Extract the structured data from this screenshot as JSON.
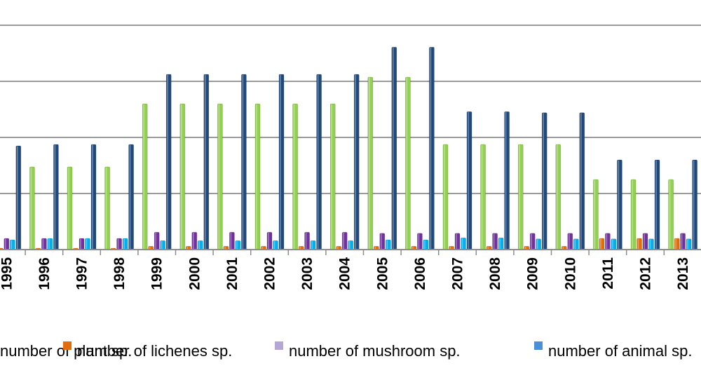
{
  "chart_data": {
    "type": "bar",
    "title": "",
    "xlabel": "",
    "ylabel": "",
    "grid": true,
    "legend_position": "bottom",
    "categories": [
      "1995",
      "1996",
      "1997",
      "1998",
      "1999",
      "2000",
      "2001",
      "2002",
      "2003",
      "2004",
      "2005",
      "2006",
      "2007",
      "2008",
      "2009",
      "2010",
      "2011",
      "2012",
      "2013"
    ],
    "ylim": [
      0,
      8
    ],
    "series": [
      {
        "name": "number of plant sp.",
        "color": "#92d050",
        "values": [
          2.95,
          2.95,
          2.95,
          2.95,
          5.2,
          5.2,
          5.2,
          5.2,
          5.2,
          5.2,
          6.15,
          6.15,
          3.75,
          3.75,
          3.75,
          3.75,
          2.5,
          2.5,
          2.5
        ]
      },
      {
        "name": "number of lichenes sp.",
        "color": "#e46c0a",
        "values": [
          0.05,
          0.05,
          0.05,
          0.05,
          0.12,
          0.12,
          0.12,
          0.12,
          0.12,
          0.12,
          0.12,
          0.12,
          0.12,
          0.12,
          0.12,
          0.12,
          0.4,
          0.4,
          0.4
        ]
      },
      {
        "name": "number of  mushroom sp.",
        "color": "#7030a0",
        "values": [
          0.4,
          0.4,
          0.4,
          0.4,
          0.62,
          0.62,
          0.62,
          0.62,
          0.62,
          0.62,
          0.58,
          0.58,
          0.58,
          0.58,
          0.58,
          0.58,
          0.58,
          0.58,
          0.58
        ]
      },
      {
        "name": "number of animal sp.",
        "color": "#00b0f0",
        "values": [
          0.35,
          0.4,
          0.4,
          0.4,
          0.32,
          0.32,
          0.32,
          0.32,
          0.32,
          0.32,
          0.35,
          0.35,
          0.42,
          0.42,
          0.38,
          0.38,
          0.38,
          0.38,
          0.38
        ]
      },
      {
        "name": "",
        "color": "#1f497d",
        "values": [
          3.7,
          3.75,
          3.75,
          3.75,
          6.25,
          6.25,
          6.25,
          6.25,
          6.25,
          6.25,
          7.22,
          7.22,
          4.92,
          4.92,
          4.88,
          4.88,
          3.2,
          3.2,
          3.2
        ]
      }
    ],
    "legend": [
      {
        "label": "number of plant sp.",
        "swatch": "#92d050"
      },
      {
        "label": "number of lichenes sp.",
        "swatch": "#e46c0a"
      },
      {
        "label": "number of  mushroom sp.",
        "swatch": "#b4a7d6"
      },
      {
        "label": "number of animal sp.",
        "swatch": "#4a90d9"
      }
    ]
  }
}
